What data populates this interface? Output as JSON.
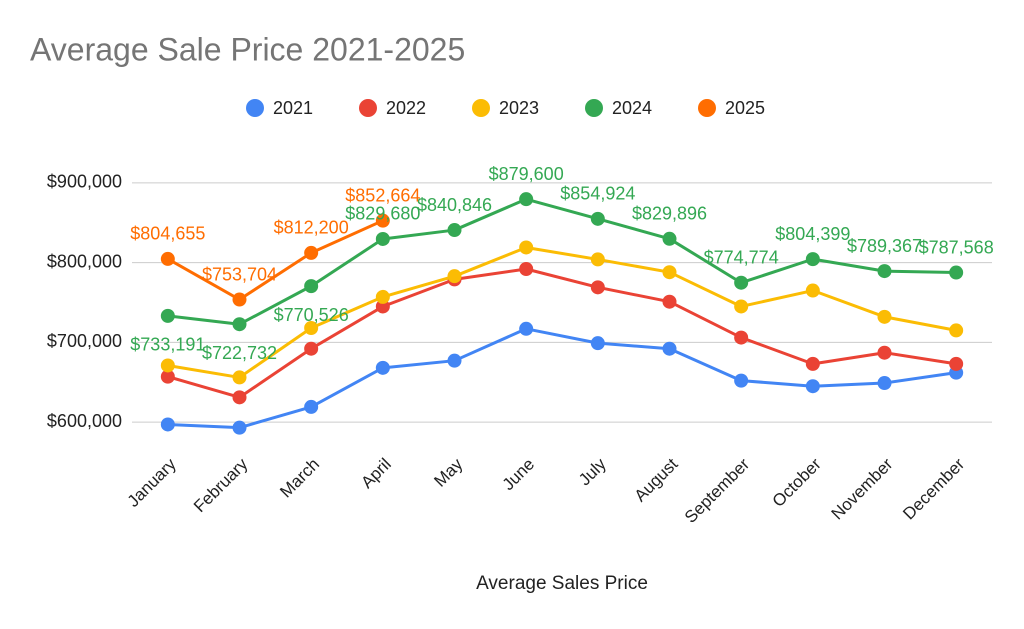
{
  "chart_data": {
    "type": "line",
    "title": "Average Sale Price 2021-2025",
    "x_label": "Average Sales Price",
    "categories": [
      "January",
      "February",
      "March",
      "April",
      "May",
      "June",
      "July",
      "August",
      "September",
      "October",
      "November",
      "December"
    ],
    "series": [
      {
        "name": "2021",
        "color": "#4285f4",
        "values": [
          597000,
          593000,
          619000,
          668000,
          677000,
          717000,
          699000,
          692000,
          652000,
          645000,
          649000,
          662000
        ]
      },
      {
        "name": "2022",
        "color": "#ea4335",
        "values": [
          657000,
          631000,
          692000,
          745000,
          779000,
          792000,
          769000,
          751000,
          706000,
          673000,
          687000,
          673000
        ]
      },
      {
        "name": "2023",
        "color": "#fbbc04",
        "values": [
          671000,
          656000,
          718000,
          757000,
          783000,
          819000,
          804000,
          788000,
          745000,
          765000,
          732000,
          715000
        ]
      },
      {
        "name": "2024",
        "color": "#34a853",
        "values": [
          733191,
          722732,
          770526,
          829680,
          840846,
          879600,
          854924,
          829896,
          774774,
          804399,
          789367,
          787568
        ],
        "value_labels": [
          "$733,191",
          "$722,732",
          "$770,526",
          "$829,680",
          "$840,846",
          "$879,600",
          "$854,924",
          "$829,896",
          "$774,774",
          "$804,399",
          "$789,367",
          "$787,568"
        ]
      },
      {
        "name": "2025",
        "color": "#ff6d01",
        "values": [
          804655,
          753704,
          812200,
          852664,
          null,
          null,
          null,
          null,
          null,
          null,
          null,
          null
        ],
        "value_labels": [
          "$804,655",
          "$753,704",
          "$812,200",
          "$852,664",
          null,
          null,
          null,
          null,
          null,
          null,
          null,
          null
        ]
      }
    ],
    "ylim": [
      575000,
      935000
    ],
    "yticks": [
      {
        "value": 600000,
        "label": "$600,000"
      },
      {
        "value": 700000,
        "label": "$700,000"
      },
      {
        "value": 800000,
        "label": "$800,000"
      },
      {
        "value": 900000,
        "label": "$900,000"
      }
    ],
    "grid": true,
    "legend": "top"
  }
}
